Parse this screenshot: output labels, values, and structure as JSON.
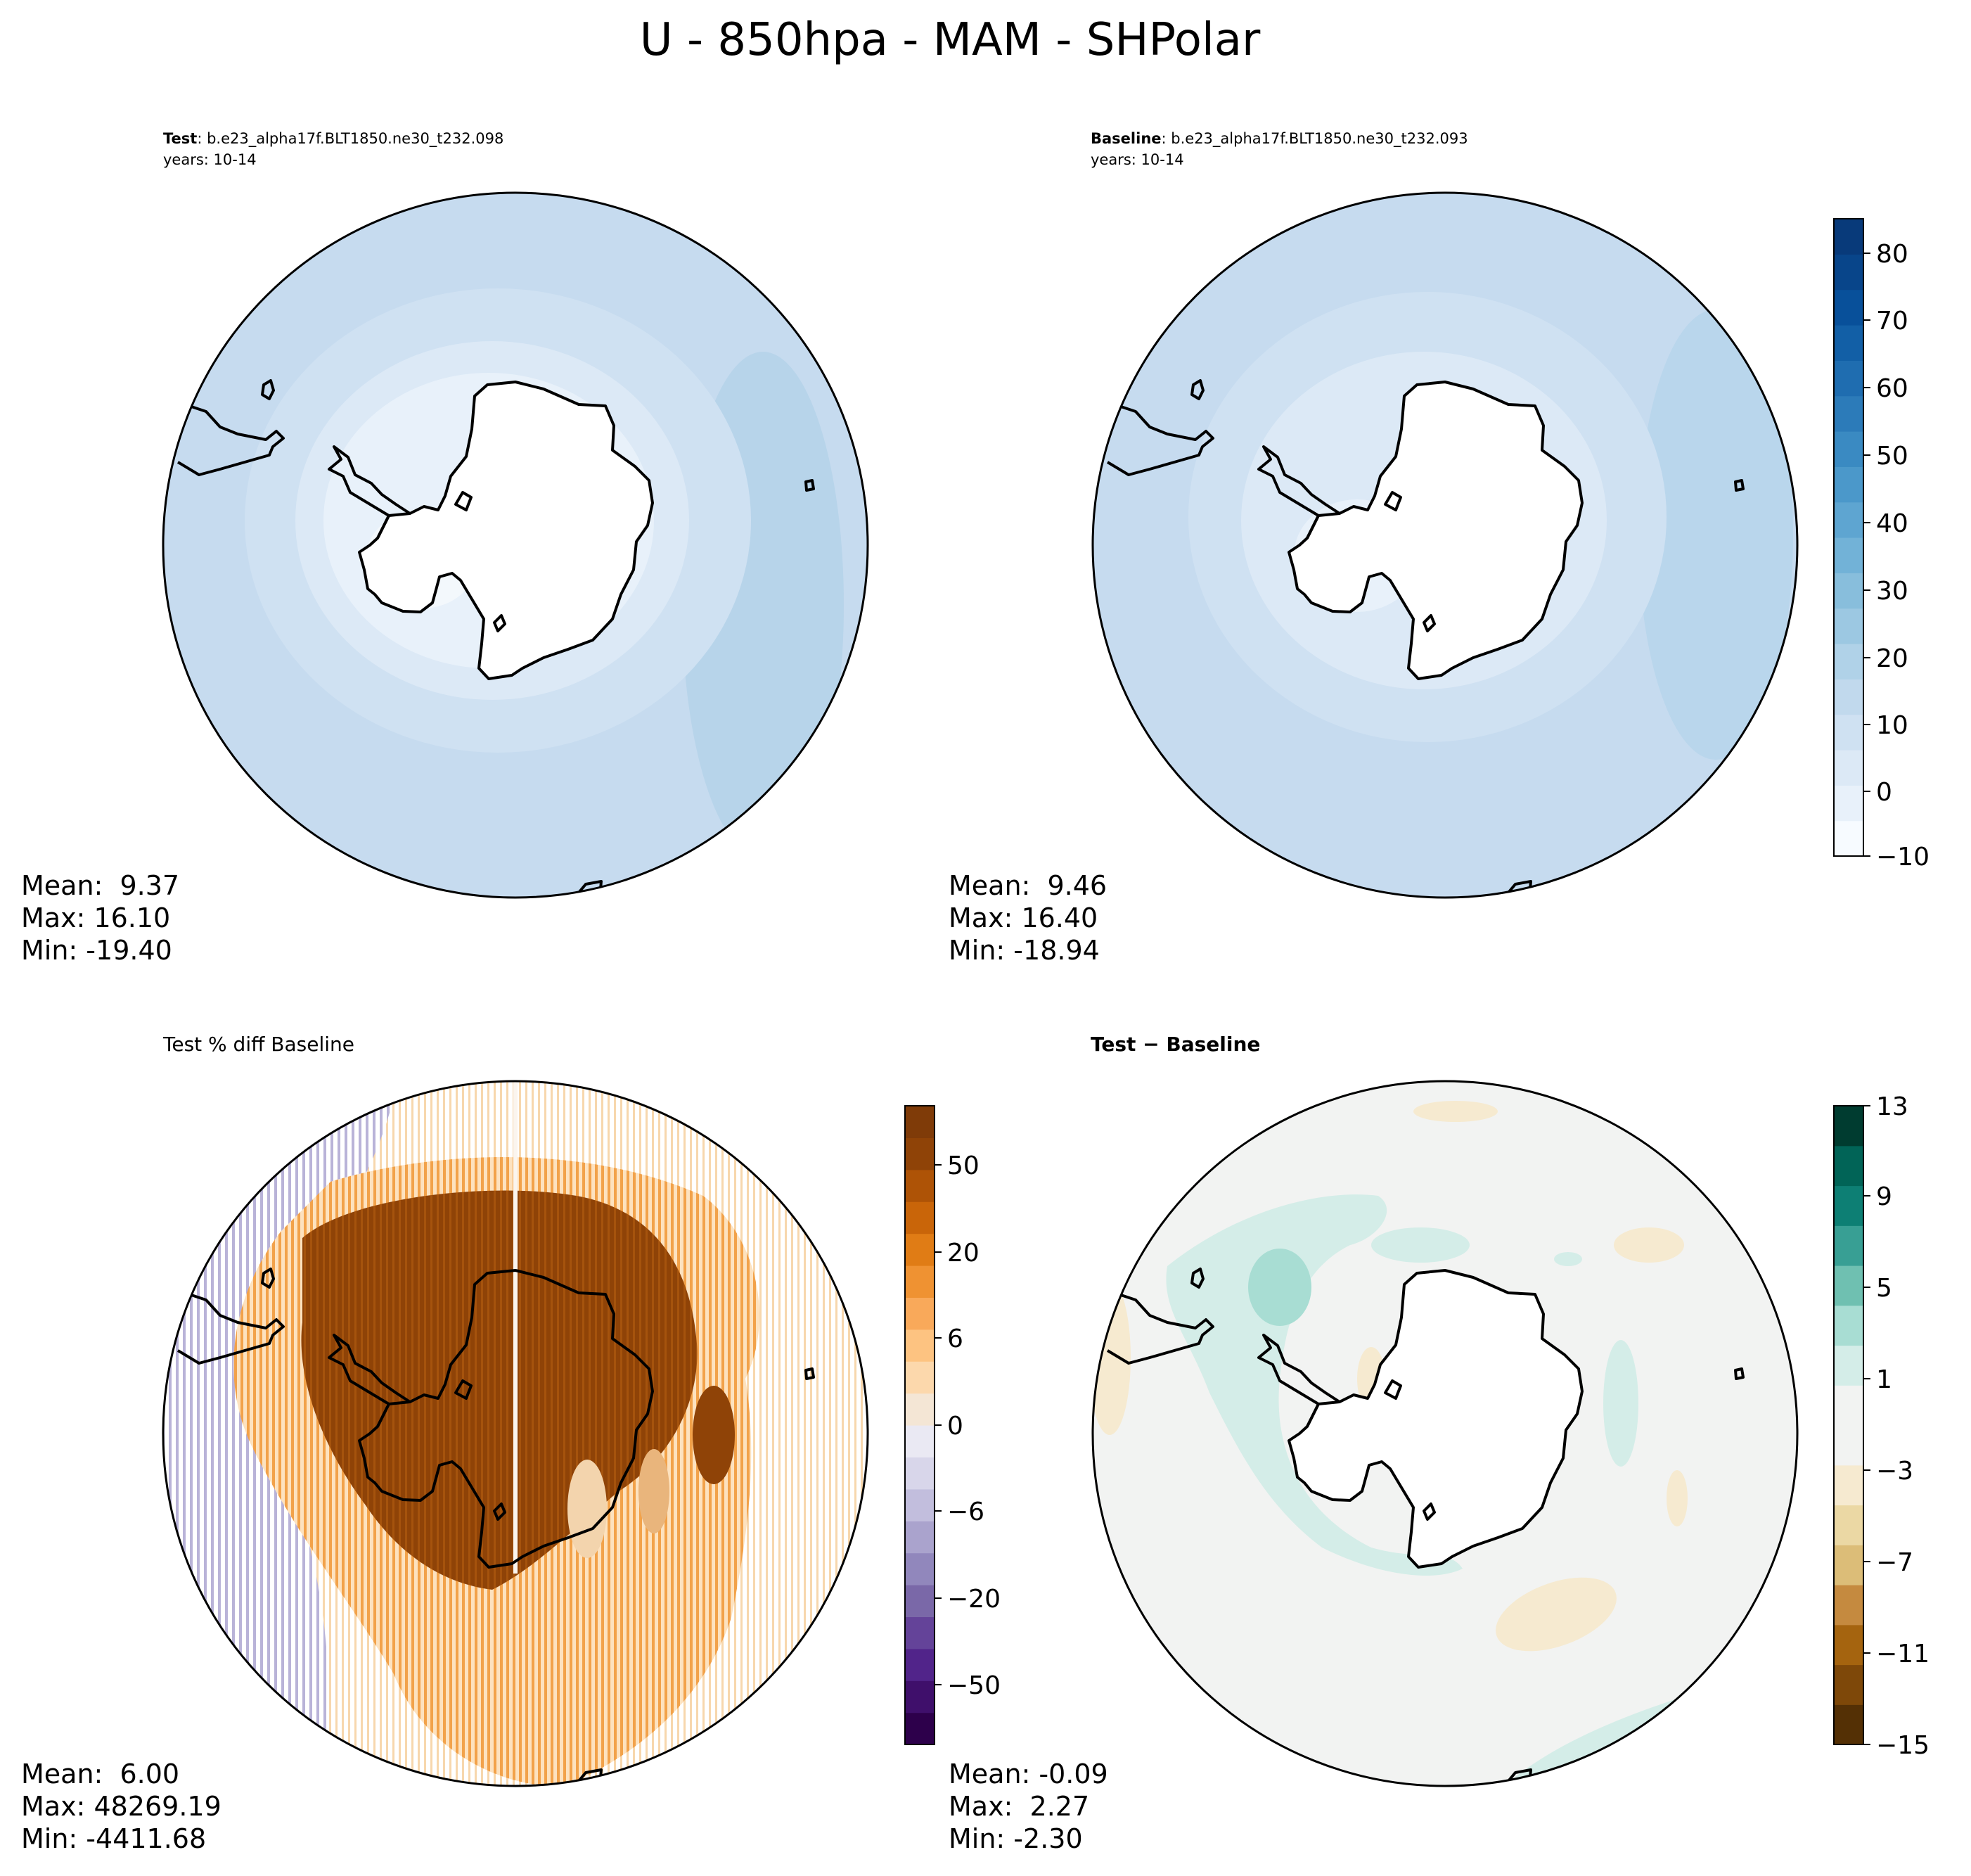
{
  "title": "U - 850hpa - MAM - SHPolar",
  "panels": [
    {
      "id": "test",
      "title_bold": "Test",
      "title_rest": ": b.e23_alpha17f.BLT1850.ne30_t232.098",
      "subtitle": "years: 10-14",
      "stats": {
        "mean": "Mean:  9.37",
        "max": "Max: 16.10",
        "min": "Min: -19.40"
      }
    },
    {
      "id": "baseline",
      "title_bold": "Baseline",
      "title_rest": ": b.e23_alpha17f.BLT1850.ne30_t232.093",
      "subtitle": "years: 10-14",
      "stats": {
        "mean": "Mean:  9.46",
        "max": "Max: 16.40",
        "min": "Min: -18.94"
      }
    },
    {
      "id": "pctdiff",
      "title": "Test % diff Baseline",
      "stats": {
        "mean": "Mean:  6.00",
        "max": "Max: 48269.19",
        "min": "Min: -4411.68"
      }
    },
    {
      "id": "diff",
      "title_bold": "Test − Baseline",
      "stats": {
        "mean": "Mean: -0.09",
        "max": "Max:  2.27",
        "min": "Min: -2.30"
      }
    }
  ],
  "colorbars": {
    "field": {
      "ticks": [
        "80",
        "70",
        "60",
        "50",
        "40",
        "30",
        "20",
        "10",
        "0",
        "−10"
      ],
      "colors": [
        "#f7fbff",
        "#e8f1fa",
        "#dce9f6",
        "#cfe1f2",
        "#c1d9ed",
        "#b0d2e8",
        "#9cc8e2",
        "#88bedc",
        "#72b2d7",
        "#5ea5d1",
        "#4b98ca",
        "#3a8ac2",
        "#2c7bb9",
        "#1f6db0",
        "#125fa6",
        "#08509a",
        "#08458a",
        "#083a7a"
      ]
    },
    "pctdiff": {
      "ticks": [
        "50",
        "20",
        "6",
        "0",
        "−6",
        "−20",
        "−50"
      ],
      "colors": [
        "#2d004b",
        "#3f0f6b",
        "#51248a",
        "#644399",
        "#7a68a8",
        "#9187bc",
        "#aaa3cd",
        "#c2bedd",
        "#d8d6ea",
        "#eae9f3",
        "#f4e6d5",
        "#fcd8ac",
        "#fdc381",
        "#f9a95a",
        "#ef9232",
        "#e07c15",
        "#c96509",
        "#ae5306",
        "#8f4307",
        "#7f3b08"
      ]
    },
    "diff": {
      "ticks": [
        "13",
        "9",
        "5",
        "1",
        "−3",
        "−7",
        "−11",
        "−15"
      ],
      "colors": [
        "#543005",
        "#7e4809",
        "#a5640f",
        "#c58a3f",
        "#dcbd78",
        "#ebd8a4",
        "#f6ead0",
        "#f2f3f2",
        "#f2f3f2",
        "#d4ede8",
        "#a8ddd3",
        "#6fc0b1",
        "#389f94",
        "#0d7f74",
        "#016457",
        "#003c30"
      ]
    }
  }
}
